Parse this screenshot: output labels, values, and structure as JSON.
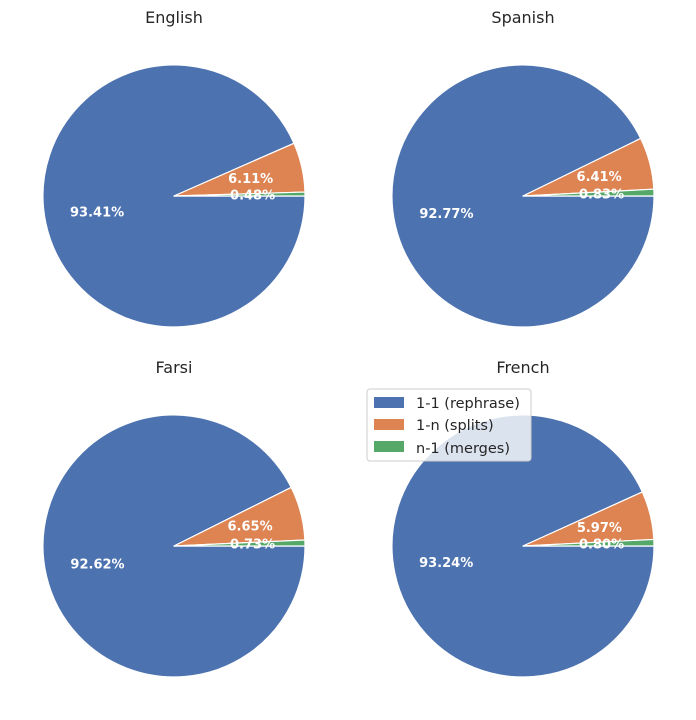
{
  "chart_data": {
    "type": "pie",
    "series_labels": [
      "1-1 (rephrase)",
      "1-n (splits)",
      "n-1 (merges)"
    ],
    "colors": [
      "#4c72b0",
      "#dd8452",
      "#55a868"
    ],
    "legend_position": "upper-left of bottom-right subplot",
    "pies": [
      {
        "title": "English",
        "values": [
          93.41,
          6.11,
          0.48
        ],
        "labels": [
          "93.41%",
          "6.11%",
          "0.48%"
        ]
      },
      {
        "title": "Spanish",
        "values": [
          92.77,
          6.41,
          0.83
        ],
        "labels": [
          "92.77%",
          "6.41%",
          "0.83%"
        ]
      },
      {
        "title": "Farsi",
        "values": [
          92.62,
          6.65,
          0.73
        ],
        "labels": [
          "92.62%",
          "6.65%",
          "0.73%"
        ]
      },
      {
        "title": "French",
        "values": [
          93.24,
          5.97,
          0.8
        ],
        "labels": [
          "93.24%",
          "5.97%",
          "0.80%"
        ]
      }
    ]
  }
}
